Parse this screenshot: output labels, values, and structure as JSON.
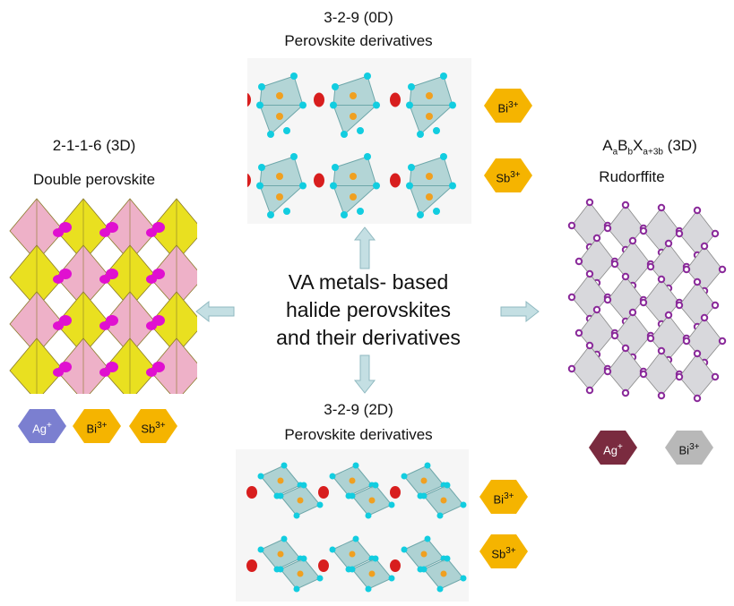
{
  "top": {
    "title": "3-2-9  (0D)",
    "subtitle": "Perovskite derivatives"
  },
  "bottom": {
    "title": "3-2-9  (2D)",
    "subtitle": "Perovskite derivatives"
  },
  "left": {
    "title": "2-1-1-6 (3D)",
    "subtitle": "Double perovskite"
  },
  "right": {
    "formula": {
      "A": "A",
      "a": "a",
      "B": "B",
      "b": "b",
      "X": "X",
      "x_sub": "a+3b",
      "suffix": " (3D)"
    },
    "subtitle": "Rudorffite"
  },
  "center": {
    "line1": "VA metals- based",
    "line2": "halide perovskites",
    "line3": "and their derivatives"
  },
  "ions": {
    "top": [
      {
        "base": "Bi",
        "charge": "3+",
        "color": "#f5b400"
      },
      {
        "base": "Sb",
        "charge": "3+",
        "color": "#f5b400"
      }
    ],
    "bottom": [
      {
        "base": "Bi",
        "charge": "3+",
        "color": "#f5b400"
      },
      {
        "base": "Sb",
        "charge": "3+",
        "color": "#f5b400"
      }
    ],
    "left": [
      {
        "base": "Ag",
        "charge": "+",
        "color": "#7b7fd0"
      },
      {
        "base": "Bi",
        "charge": "3+",
        "color": "#f5b400"
      },
      {
        "base": "Sb",
        "charge": "3+",
        "color": "#f5b400"
      }
    ],
    "right": [
      {
        "base": "Ag",
        "charge": "+",
        "color": "#7a2b3f"
      },
      {
        "base": "Bi",
        "charge": "3+",
        "color": "#b8b8b8"
      }
    ]
  },
  "colors": {
    "arrow": "#c4dfe3",
    "arrow_stroke": "#8fb9c0",
    "octa": "#9cc9cb",
    "halide": "#12cde0",
    "oxygen": "#d81e1e",
    "metal": "#f0a020",
    "yellow_octa": "#e9e020",
    "pink_octa": "#eeb1c8",
    "magenta": "#e010d0",
    "gray_octa": "#d8d8dc",
    "purple_atom": "#8a2a9a"
  }
}
